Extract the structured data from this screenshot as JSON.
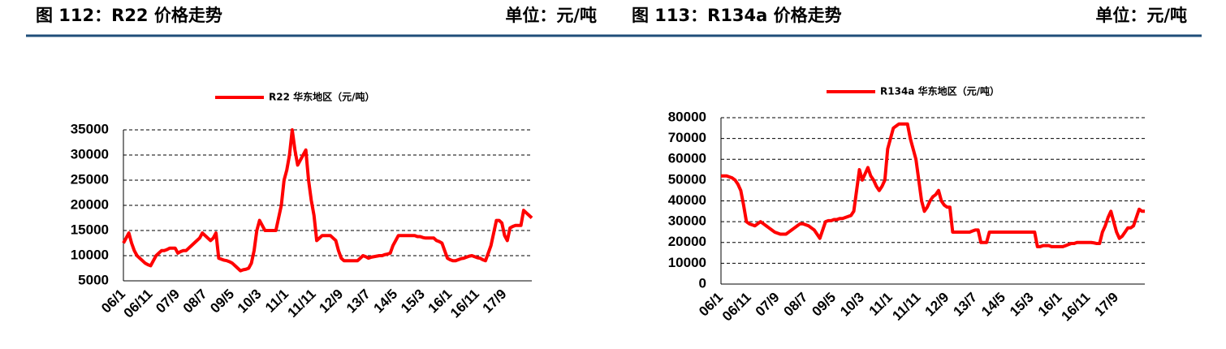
{
  "chart_data": [
    {
      "type": "line",
      "title": "图 112：R22 价格走势",
      "unit_label": "单位：元/吨",
      "categories": [
        "06/1",
        null,
        null,
        null,
        null,
        null,
        null,
        null,
        null,
        null,
        "06/11",
        null,
        null,
        null,
        null,
        null,
        null,
        null,
        null,
        null,
        "07/9",
        null,
        null,
        null,
        null,
        null,
        null,
        null,
        null,
        null,
        "08/7",
        null,
        null,
        null,
        null,
        null,
        null,
        null,
        null,
        null,
        "09/5",
        null,
        null,
        null,
        null,
        null,
        null,
        null,
        null,
        null,
        "10/3",
        null,
        null,
        null,
        null,
        null,
        null,
        null,
        null,
        null,
        "11/1",
        null,
        null,
        null,
        null,
        null,
        null,
        null,
        null,
        null,
        "11/11",
        null,
        null,
        null,
        null,
        null,
        null,
        null,
        null,
        null,
        "12/9",
        null,
        null,
        null,
        null,
        null,
        null,
        null,
        null,
        null,
        "13/7",
        null,
        null,
        null,
        null,
        null,
        null,
        null,
        null,
        null,
        "14/5",
        null,
        null,
        null,
        null,
        null,
        null,
        null,
        null,
        null,
        "15/3",
        null,
        null,
        null,
        null,
        null,
        null,
        null,
        null,
        null,
        "16/1",
        null,
        null,
        null,
        null,
        null,
        null,
        null,
        null,
        null,
        "16/11",
        null,
        null,
        null,
        null,
        null,
        null,
        null,
        null,
        null,
        "17/9",
        null,
        null,
        null,
        null,
        null,
        null,
        null,
        null,
        null,
        null
      ],
      "series": [
        {
          "name": "R22 华东地区（元/吨）",
          "color": "#ff0000",
          "values": [
            12500,
            13500,
            14500,
            12500,
            11000,
            10000,
            9500,
            9000,
            8500,
            8200,
            8000,
            9000,
            10000,
            10500,
            11000,
            11000,
            11200,
            11500,
            11500,
            11500,
            10500,
            10800,
            11000,
            11000,
            11500,
            12000,
            12500,
            13000,
            13500,
            14500,
            14000,
            13500,
            13000,
            13500,
            14500,
            9500,
            9300,
            9100,
            9000,
            8800,
            8500,
            8000,
            7500,
            7000,
            7200,
            7300,
            7500,
            8500,
            11000,
            15000,
            17000,
            16000,
            15000,
            15000,
            15000,
            15000,
            15000,
            17500,
            20000,
            25000,
            27000,
            30000,
            35000,
            31000,
            28000,
            29000,
            30000,
            31000,
            25000,
            21000,
            18000,
            13000,
            13500,
            14000,
            14000,
            14000,
            14000,
            13500,
            13000,
            11000,
            9500,
            9000,
            9000,
            9000,
            9000,
            9000,
            9000,
            9500,
            10000,
            9800,
            9500,
            9700,
            9800,
            9900,
            10000,
            10000,
            10200,
            10300,
            10500,
            12000,
            13000,
            14000,
            14000,
            14000,
            14000,
            14000,
            14000,
            14000,
            13800,
            13800,
            13600,
            13500,
            13500,
            13500,
            13500,
            13000,
            12800,
            12500,
            11000,
            9500,
            9200,
            9000,
            9000,
            9200,
            9400,
            9500,
            9700,
            9900,
            10000,
            9800,
            9600,
            9500,
            9200,
            9000,
            10500,
            12000,
            14500,
            17000,
            17000,
            16500,
            14000,
            13000,
            15500,
            15800,
            16000,
            16000,
            16000,
            19000,
            18500,
            18000,
            17500
          ]
        }
      ],
      "ylim": [
        5000,
        35000
      ],
      "yticks": [
        5000,
        10000,
        15000,
        20000,
        25000,
        30000,
        35000
      ],
      "grid": true
    },
    {
      "type": "line",
      "title": "图 113：R134a 价格走势",
      "unit_label": "单位：元/吨",
      "categories": [
        "06/1",
        null,
        null,
        null,
        null,
        null,
        null,
        null,
        null,
        null,
        "06/11",
        null,
        null,
        null,
        null,
        null,
        null,
        null,
        null,
        null,
        "07/9",
        null,
        null,
        null,
        null,
        null,
        null,
        null,
        null,
        null,
        "08/7",
        null,
        null,
        null,
        null,
        null,
        null,
        null,
        null,
        null,
        "09/5",
        null,
        null,
        null,
        null,
        null,
        null,
        null,
        null,
        null,
        "10/3",
        null,
        null,
        null,
        null,
        null,
        null,
        null,
        null,
        null,
        "11/1",
        null,
        null,
        null,
        null,
        null,
        null,
        null,
        null,
        null,
        "11/11",
        null,
        null,
        null,
        null,
        null,
        null,
        null,
        null,
        null,
        "12/9",
        null,
        null,
        null,
        null,
        null,
        null,
        null,
        null,
        null,
        "13/7",
        null,
        null,
        null,
        null,
        null,
        null,
        null,
        null,
        null,
        "14/5",
        null,
        null,
        null,
        null,
        null,
        null,
        null,
        null,
        null,
        "15/3",
        null,
        null,
        null,
        null,
        null,
        null,
        null,
        null,
        null,
        "16/1",
        null,
        null,
        null,
        null,
        null,
        null,
        null,
        null,
        null,
        "16/11",
        null,
        null,
        null,
        null,
        null,
        null,
        null,
        null,
        null,
        "17/9",
        null,
        null,
        null,
        null,
        null,
        null,
        null,
        null,
        null,
        null
      ],
      "series": [
        {
          "name": "R134a 华东地区（元/吨）",
          "color": "#ff0000",
          "values": [
            52000,
            52000,
            52000,
            51500,
            51000,
            50000,
            48000,
            45000,
            38000,
            30000,
            29000,
            28500,
            28000,
            29000,
            30000,
            29000,
            28000,
            27000,
            26000,
            25000,
            24500,
            24000,
            24000,
            24000,
            25000,
            26000,
            27000,
            28000,
            29000,
            29000,
            28500,
            28000,
            27000,
            26000,
            24000,
            22000,
            26000,
            30000,
            30500,
            30500,
            31000,
            31000,
            31500,
            31500,
            32000,
            32500,
            33000,
            35000,
            45000,
            55000,
            50000,
            53000,
            56000,
            52000,
            50000,
            47000,
            45000,
            47000,
            50000,
            65000,
            70000,
            75000,
            76000,
            77000,
            77000,
            77000,
            77000,
            70000,
            65000,
            60000,
            50000,
            40000,
            35000,
            37000,
            40000,
            42000,
            43000,
            45000,
            40000,
            38000,
            37000,
            37000,
            25000,
            25000,
            25000,
            25000,
            25000,
            25000,
            25000,
            25500,
            26000,
            26000,
            20000,
            20000,
            20000,
            25000,
            25000,
            25000,
            25000,
            25000,
            25000,
            25000,
            25000,
            25000,
            25000,
            25000,
            25000,
            25000,
            25000,
            25000,
            25000,
            25000,
            18000,
            18000,
            18500,
            18500,
            18500,
            18000,
            18000,
            18000,
            18000,
            18000,
            18500,
            19000,
            19500,
            19500,
            20000,
            20000,
            20000,
            20000,
            20000,
            20000,
            19800,
            19500,
            19500,
            25000,
            28000,
            32000,
            35000,
            30000,
            25000,
            22000,
            23000,
            25000,
            27000,
            27000,
            28000,
            32000,
            36000,
            35000,
            35000
          ]
        }
      ],
      "ylim": [
        0,
        80000
      ],
      "yticks": [
        0,
        10000,
        20000,
        30000,
        40000,
        50000,
        60000,
        70000,
        80000
      ],
      "grid": true
    }
  ]
}
